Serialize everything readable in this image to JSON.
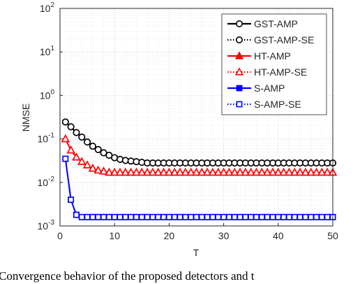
{
  "chart_data": {
    "type": "line",
    "log_y": true,
    "grid": true,
    "xlabel": "T",
    "ylabel": "NMSE",
    "caption": "Convergence behavior of the proposed detectors and t",
    "xlim": [
      0,
      50
    ],
    "xticks": [
      0,
      10,
      20,
      30,
      40,
      50
    ],
    "ylim": [
      0.001,
      100
    ],
    "yticks": [
      {
        "value": 0.001,
        "label": "10",
        "exp": "-3"
      },
      {
        "value": 0.01,
        "label": "10",
        "exp": "-2"
      },
      {
        "value": 0.1,
        "label": "10",
        "exp": "-1"
      },
      {
        "value": 1,
        "label": "10",
        "exp": "0"
      },
      {
        "value": 10,
        "label": "10",
        "exp": "1"
      },
      {
        "value": 100,
        "label": "10",
        "exp": "2"
      }
    ],
    "legend": "upper right",
    "x": [
      1,
      2,
      3,
      4,
      5,
      6,
      7,
      8,
      9,
      10,
      11,
      12,
      13,
      14,
      15,
      16,
      17,
      18,
      19,
      20,
      21,
      22,
      23,
      24,
      25,
      26,
      27,
      28,
      29,
      30,
      31,
      32,
      33,
      34,
      35,
      36,
      37,
      38,
      39,
      40,
      41,
      42,
      43,
      44,
      45,
      46,
      47,
      48,
      49,
      50
    ],
    "series": [
      {
        "name": "GST-AMP",
        "color": "#000000",
        "line_style": "solid",
        "marker": "circle",
        "values": [
          0.245,
          0.19,
          0.14,
          0.11,
          0.085,
          0.068,
          0.057,
          0.048,
          0.042,
          0.037,
          0.034,
          0.032,
          0.031,
          0.03,
          0.029,
          0.028,
          0.028,
          0.028,
          0.028,
          0.028,
          0.028,
          0.028,
          0.028,
          0.028,
          0.028,
          0.028,
          0.028,
          0.028,
          0.028,
          0.028,
          0.028,
          0.028,
          0.028,
          0.028,
          0.028,
          0.028,
          0.028,
          0.028,
          0.028,
          0.028,
          0.028,
          0.028,
          0.028,
          0.028,
          0.028,
          0.028,
          0.028,
          0.028,
          0.028,
          0.028
        ]
      },
      {
        "name": "GST-AMP-SE",
        "color": "#000000",
        "line_style": "dotted",
        "marker": "circle",
        "values": [
          0.245,
          0.19,
          0.14,
          0.11,
          0.085,
          0.068,
          0.057,
          0.048,
          0.042,
          0.037,
          0.034,
          0.032,
          0.031,
          0.03,
          0.029,
          0.028,
          0.028,
          0.028,
          0.028,
          0.028,
          0.028,
          0.028,
          0.028,
          0.028,
          0.028,
          0.028,
          0.028,
          0.028,
          0.028,
          0.028,
          0.028,
          0.028,
          0.028,
          0.028,
          0.028,
          0.028,
          0.028,
          0.028,
          0.028,
          0.028,
          0.028,
          0.028,
          0.028,
          0.028,
          0.028,
          0.028,
          0.028,
          0.028,
          0.028,
          0.028
        ]
      },
      {
        "name": "HT-AMP",
        "color": "#ff0000",
        "line_style": "solid",
        "marker": "triangle",
        "values": [
          0.1,
          0.055,
          0.038,
          0.03,
          0.025,
          0.021,
          0.019,
          0.018,
          0.017,
          0.017,
          0.017,
          0.017,
          0.017,
          0.017,
          0.017,
          0.017,
          0.017,
          0.017,
          0.017,
          0.017,
          0.017,
          0.017,
          0.017,
          0.017,
          0.017,
          0.017,
          0.017,
          0.017,
          0.017,
          0.017,
          0.017,
          0.017,
          0.017,
          0.017,
          0.017,
          0.017,
          0.017,
          0.017,
          0.017,
          0.017,
          0.017,
          0.017,
          0.017,
          0.017,
          0.017,
          0.017,
          0.017,
          0.017,
          0.017,
          0.017
        ]
      },
      {
        "name": "HT-AMP-SE",
        "color": "#ff0000",
        "line_style": "dotted",
        "marker": "triangle",
        "values": [
          0.1,
          0.055,
          0.038,
          0.03,
          0.025,
          0.021,
          0.019,
          0.018,
          0.017,
          0.017,
          0.017,
          0.017,
          0.017,
          0.017,
          0.017,
          0.017,
          0.017,
          0.017,
          0.017,
          0.017,
          0.017,
          0.017,
          0.017,
          0.017,
          0.017,
          0.017,
          0.017,
          0.017,
          0.017,
          0.017,
          0.017,
          0.017,
          0.017,
          0.017,
          0.017,
          0.017,
          0.017,
          0.017,
          0.017,
          0.017,
          0.017,
          0.017,
          0.017,
          0.017,
          0.017,
          0.017,
          0.017,
          0.017,
          0.017,
          0.017
        ]
      },
      {
        "name": "S-AMP",
        "color": "#0000ff",
        "line_style": "solid",
        "marker": "square",
        "values": [
          0.035,
          0.004,
          0.0018,
          0.0016,
          0.0016,
          0.0016,
          0.0016,
          0.0016,
          0.0016,
          0.0016,
          0.0016,
          0.0016,
          0.0016,
          0.0016,
          0.0016,
          0.0016,
          0.0016,
          0.0016,
          0.0016,
          0.0016,
          0.0016,
          0.0016,
          0.0016,
          0.0016,
          0.0016,
          0.0016,
          0.0016,
          0.0016,
          0.0016,
          0.0016,
          0.0016,
          0.0016,
          0.0016,
          0.0016,
          0.0016,
          0.0016,
          0.0016,
          0.0016,
          0.0016,
          0.0016,
          0.0016,
          0.0016,
          0.0016,
          0.0016,
          0.0016,
          0.0016,
          0.0016,
          0.0016,
          0.0016,
          0.0016
        ]
      },
      {
        "name": "S-AMP-SE",
        "color": "#0000ff",
        "line_style": "dotted",
        "marker": "square",
        "values": [
          0.035,
          0.004,
          0.0018,
          0.0016,
          0.0016,
          0.0016,
          0.0016,
          0.0016,
          0.0016,
          0.0016,
          0.0016,
          0.0016,
          0.0016,
          0.0016,
          0.0016,
          0.0016,
          0.0016,
          0.0016,
          0.0016,
          0.0016,
          0.0016,
          0.0016,
          0.0016,
          0.0016,
          0.0016,
          0.0016,
          0.0016,
          0.0016,
          0.0016,
          0.0016,
          0.0016,
          0.0016,
          0.0016,
          0.0016,
          0.0016,
          0.0016,
          0.0016,
          0.0016,
          0.0016,
          0.0016,
          0.0016,
          0.0016,
          0.0016,
          0.0016,
          0.0016,
          0.0016,
          0.0016,
          0.0016,
          0.0016,
          0.0016
        ]
      }
    ]
  }
}
